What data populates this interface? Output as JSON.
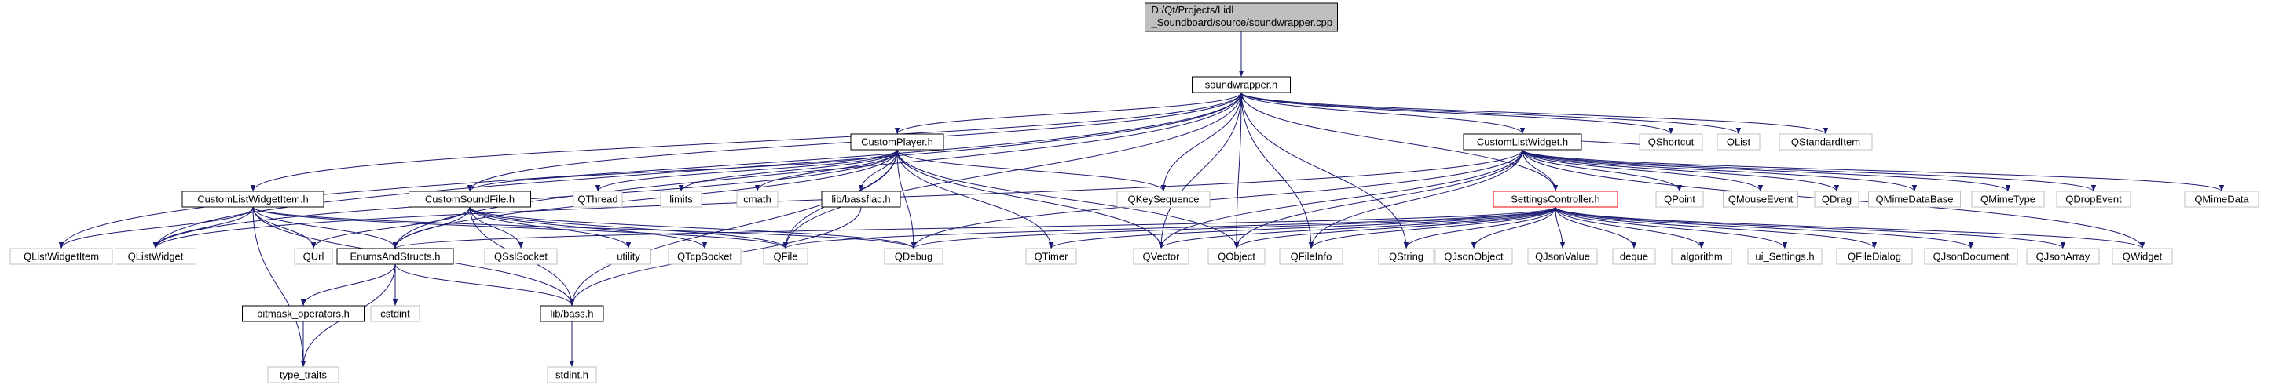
{
  "graph": {
    "root": {
      "line1": "D:/Qt/Projects/Lidl",
      "line2": "_Soundboard/source/soundwrapper.cpp"
    },
    "nodes": {
      "soundwrapper_h": "soundwrapper.h",
      "customplayer_h": "CustomPlayer.h",
      "customlistwidget_h": "CustomListWidget.h",
      "customlistwidgetitem_h": "CustomListWidgetItem.h",
      "customsoundfile_h": "CustomSoundFile.h",
      "bassflac_h": "lib/bassflac.h",
      "settingscontroller_h": "SettingsController.h",
      "enumsandstructs_h": "EnumsAndStructs.h",
      "bitmask_operators_h": "bitmask_operators.h",
      "bass_h": "lib/bass.h",
      "type_traits": "type_traits",
      "cstdint": "cstdint",
      "stdint_h": "stdint.h",
      "qshortcut": "QShortcut",
      "qlist": "QList",
      "qstandarditem": "QStandardItem",
      "qthread": "QThread",
      "limits": "limits",
      "cmath": "cmath",
      "qkeysequence": "QKeySequence",
      "qpoint": "QPoint",
      "qmouseevent": "QMouseEvent",
      "qdrag": "QDrag",
      "qmimedatabase": "QMimeDataBase",
      "qmimetype": "QMimeType",
      "qdropevent": "QDropEvent",
      "qmimedata": "QMimeData",
      "qlistwidgetitem": "QListWidgetItem",
      "qlistwidget": "QListWidget",
      "qurl": "QUrl",
      "qsslsocket": "QSslSocket",
      "utility": "utility",
      "qtcpsocket": "QTcpSocket",
      "qfile": "QFile",
      "qdebug": "QDebug",
      "qtimer": "QTimer",
      "qvector": "QVector",
      "qobject": "QObject",
      "qfileinfo": "QFileInfo",
      "qstring": "QString",
      "qjsonobject": "QJsonObject",
      "qjsonvalue": "QJsonValue",
      "deque": "deque",
      "algorithm": "algorithm",
      "ui_settings_h": "ui_Settings.h",
      "qfiledialog": "QFileDialog",
      "qjsondocument": "QJsonDocument",
      "qjsonarray": "QJsonArray",
      "qwidget": "QWidget"
    }
  },
  "colors": {
    "edge": "#191970",
    "root_fill": "#bfbfbf",
    "node_border": "#000000",
    "external_border": "#bfbfbf",
    "highlight_border": "#ff0000"
  }
}
